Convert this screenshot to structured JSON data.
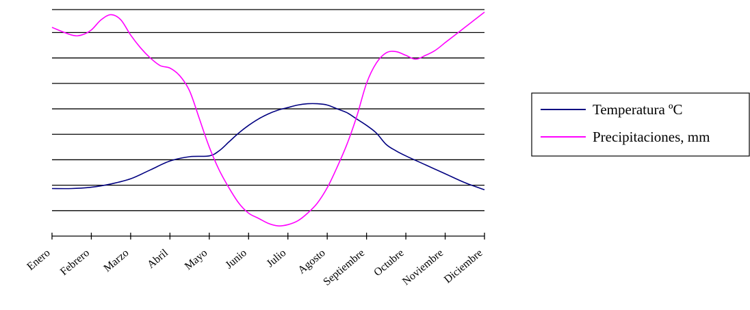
{
  "chart_data": {
    "type": "line",
    "categories": [
      "Enero",
      "Febrero",
      "Marzo",
      "Abril",
      "Mayo",
      "Junio",
      "Julio",
      "Agosto",
      "Septiembre",
      "Octubre",
      "Noviembre",
      "Diciembre"
    ],
    "series": [
      {
        "name": "Temperatura ºC",
        "color": "#000080",
        "x": [
          0,
          0.5,
          1,
          1.5,
          2,
          2.5,
          3,
          3.5,
          4,
          4.25,
          4.5,
          4.75,
          5,
          5.25,
          5.5,
          5.75,
          6,
          6.25,
          6.5,
          6.75,
          7,
          7.25,
          7.5,
          7.75,
          8,
          8.25,
          8.5,
          8.75,
          9,
          9.5,
          10,
          10.5,
          11
        ],
        "values": [
          0.87,
          0.87,
          0.92,
          1.05,
          1.25,
          1.6,
          1.95,
          2.12,
          2.15,
          2.35,
          2.7,
          3.05,
          3.35,
          3.6,
          3.8,
          3.95,
          4.05,
          4.15,
          4.2,
          4.2,
          4.15,
          4.0,
          3.85,
          3.6,
          3.35,
          3.05,
          2.6,
          2.35,
          2.15,
          1.8,
          1.45,
          1.1,
          0.82
        ]
      },
      {
        "name": "Precipitaciones, mm",
        "color": "#ff00ff",
        "x": [
          0,
          0.5,
          0.75,
          1,
          1.25,
          1.5,
          1.75,
          2,
          2.25,
          2.5,
          2.75,
          3,
          3.25,
          3.5,
          3.75,
          4,
          4.25,
          4.5,
          4.75,
          5,
          5.25,
          5.5,
          5.75,
          6,
          6.25,
          6.5,
          6.75,
          7,
          7.25,
          7.5,
          7.75,
          8,
          8.25,
          8.5,
          8.75,
          9,
          9.25,
          9.5,
          9.75,
          10,
          10.25,
          10.5,
          10.75,
          11
        ],
        "values": [
          7.2,
          6.9,
          6.9,
          7.1,
          7.5,
          7.7,
          7.5,
          6.9,
          6.4,
          6.0,
          5.7,
          5.6,
          5.3,
          4.7,
          3.6,
          2.5,
          1.6,
          0.9,
          0.3,
          -0.1,
          -0.3,
          -0.5,
          -0.6,
          -0.55,
          -0.4,
          -0.1,
          0.3,
          0.9,
          1.7,
          2.6,
          3.7,
          5.0,
          5.8,
          6.2,
          6.25,
          6.1,
          5.95,
          6.1,
          6.3,
          6.6,
          6.9,
          7.2,
          7.5,
          7.8
        ]
      }
    ],
    "ylim": [
      -1,
      7.9
    ],
    "gridlines": [
      0,
      1,
      2,
      3,
      4,
      5,
      6,
      7,
      7.9
    ],
    "grid": true,
    "legend_position": "right"
  }
}
